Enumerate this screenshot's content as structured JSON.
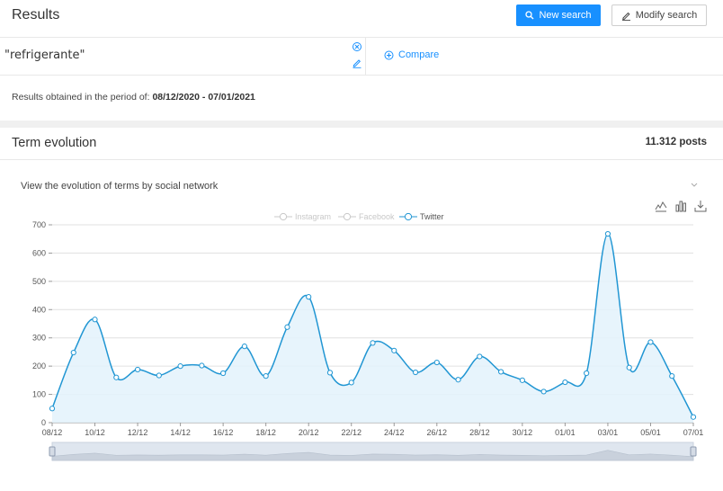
{
  "header": {
    "title": "Results",
    "new_search_label": "New search",
    "modify_search_label": "Modify search"
  },
  "query": {
    "text": "\"refrigerante\"",
    "compare_label": "Compare"
  },
  "period": {
    "prefix": "Results obtained in the period of: ",
    "range": "08/12/2020 - 07/01/2021"
  },
  "section": {
    "title": "Term evolution",
    "posts": "11.312 posts",
    "subtitle": "View the evolution of terms by social network"
  },
  "icons": {
    "new_search": "search-icon",
    "modify_search": "edit-icon",
    "cancel": "close-circle-icon",
    "edit_query": "edit-icon",
    "compare": "plus-circle-icon",
    "collapse": "chevron-down-icon",
    "tools": [
      "line-chart-icon",
      "bar-chart-icon",
      "download-icon"
    ]
  },
  "colors": {
    "primary": "#1890ff",
    "series": "#2196d3",
    "series_fill": "#e3f2fb",
    "legend_inactive": "#c8c8c8"
  },
  "chart_data": {
    "type": "area",
    "legend": [
      {
        "name": "Instagram",
        "active": false
      },
      {
        "name": "Facebook",
        "active": false
      },
      {
        "name": "Twitter",
        "active": true
      }
    ],
    "x": [
      "08/12",
      "09/12",
      "10/12",
      "11/12",
      "12/12",
      "13/12",
      "14/12",
      "15/12",
      "16/12",
      "17/12",
      "18/12",
      "19/12",
      "20/12",
      "21/12",
      "22/12",
      "23/12",
      "24/12",
      "25/12",
      "26/12",
      "27/12",
      "28/12",
      "29/12",
      "30/12",
      "31/12",
      "01/01",
      "02/01",
      "03/01",
      "04/01",
      "05/01",
      "06/01",
      "07/01"
    ],
    "x_tick_labels": [
      "08/12",
      "10/12",
      "12/12",
      "14/12",
      "16/12",
      "18/12",
      "20/12",
      "22/12",
      "24/12",
      "26/12",
      "28/12",
      "30/12",
      "01/01",
      "03/01",
      "05/01",
      "07/01"
    ],
    "series": [
      {
        "name": "Twitter",
        "values": [
          50,
          248,
          365,
          160,
          188,
          167,
          200,
          202,
          175,
          270,
          165,
          338,
          445,
          177,
          142,
          282,
          255,
          178,
          213,
          152,
          234,
          180,
          150,
          110,
          143,
          175,
          668,
          195,
          285,
          165,
          20
        ]
      }
    ],
    "ylim": [
      0,
      700
    ],
    "yticks": [
      0,
      100,
      200,
      300,
      400,
      500,
      600,
      700
    ],
    "grid": true,
    "legend_position": "top-center",
    "has_zoom_slider": true
  }
}
